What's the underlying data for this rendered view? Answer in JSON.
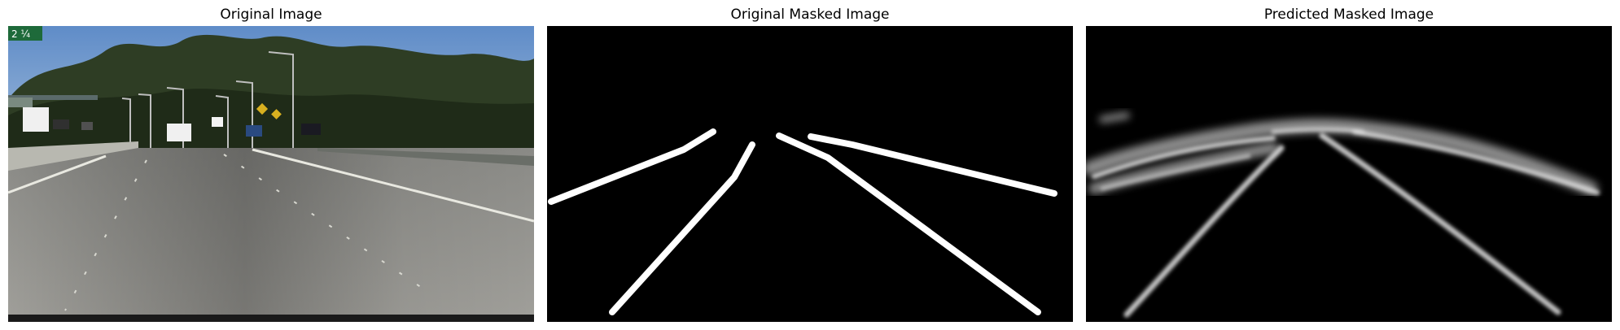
{
  "panels": [
    {
      "title": "Original Image"
    },
    {
      "title": "Original Masked Image"
    },
    {
      "title": "Predicted Masked Image"
    }
  ],
  "scene": {
    "sign_text": "2 ¼",
    "colors": {
      "sky": "#6f9ad0",
      "trees": "#2b3a22",
      "road": "#8c8c88",
      "mask_bg": "#000000",
      "mask_line": "#ffffff"
    }
  }
}
